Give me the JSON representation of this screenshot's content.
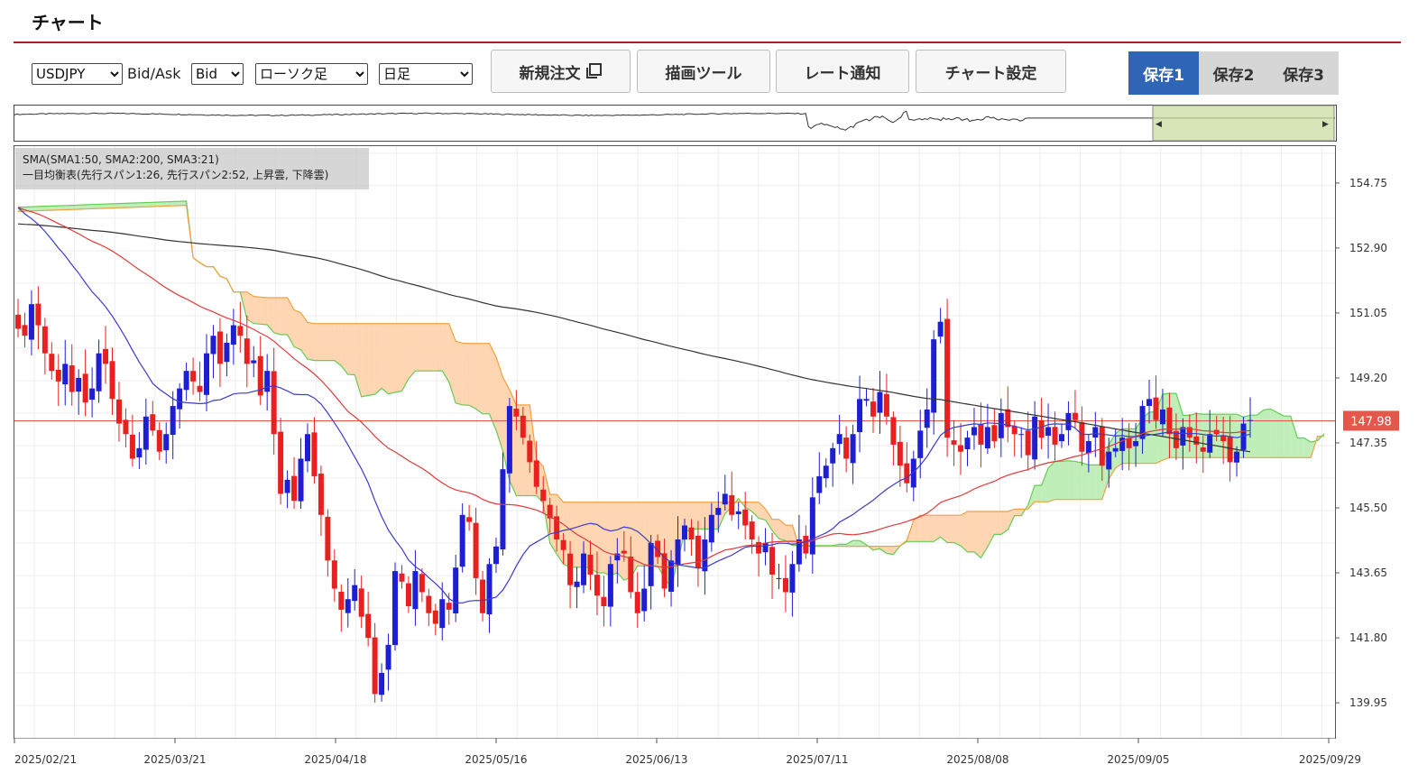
{
  "header": {
    "title": "チャート"
  },
  "toolbar": {
    "symbol": {
      "value": "USDJPY",
      "options": [
        "USDJPY"
      ]
    },
    "bidask_label": "Bid/Ask",
    "bidask": {
      "value": "Bid",
      "options": [
        "Bid"
      ]
    },
    "chart_type": {
      "value": "ローソク足",
      "options": [
        "ローソク足"
      ]
    },
    "timeframe": {
      "value": "日足",
      "options": [
        "日足"
      ]
    },
    "new_order_label": "新規注文",
    "drawing_tools_label": "描画ツール",
    "rate_alert_label": "レート通知",
    "chart_settings_label": "チャート設定",
    "saves": [
      "保存1",
      "保存2",
      "保存3"
    ],
    "active_save": 0
  },
  "legend": {
    "line1": "SMA(SMA1:50, SMA2:200, SMA3:21)",
    "line2": "一目均衡表(先行スパン1:26, 先行スパン2:52, 上昇雲, 下降雲)"
  },
  "chart_data": {
    "type": "candlestick",
    "y_axis_ticks": [
      "154.75",
      "152.90",
      "151.05",
      "149.20",
      "147.35",
      "145.50",
      "143.65",
      "141.80",
      "139.95"
    ],
    "y_axis_values": [
      154.75,
      152.9,
      151.05,
      149.2,
      147.35,
      145.5,
      143.65,
      141.8,
      139.95
    ],
    "ylim": [
      138.95,
      155.8
    ],
    "x_axis_ticks": [
      "2025/02/21",
      "2025/03/21",
      "2025/04/18",
      "2025/05/16",
      "2025/06/13",
      "2025/07/11",
      "2025/08/08",
      "2025/09/05",
      "2025/09/29"
    ],
    "current_price": "147.98",
    "current_price_value": 147.98,
    "colors": {
      "up": "#1e1ed2",
      "down": "#e82020",
      "sma50": "#e03a3a",
      "sma200": "#333333",
      "sma21": "#3a3ad0",
      "cloud_up": "#b8ecb0",
      "cloud_down": "#ffd2a8",
      "span1": "#66cc55",
      "span2": "#f0a040",
      "price_line": "#e3584a"
    },
    "closes": [
      150.6,
      150.4,
      151.3,
      150.7,
      149.9,
      149.4,
      149.1,
      149.6,
      148.8,
      149.2,
      148.5,
      148.9,
      149.9,
      149.6,
      148.6,
      147.9,
      147.6,
      146.9,
      147.2,
      148.1,
      147.7,
      147.1,
      147.6,
      148.4,
      148.9,
      149.4,
      149.1,
      148.8,
      149.9,
      150.4,
      149.6,
      150.2,
      150.7,
      150.4,
      149.6,
      149.7,
      148.7,
      149.4,
      147.6,
      145.9,
      146.3,
      145.7,
      146.9,
      147.6,
      146.4,
      145.3,
      144.0,
      143.2,
      142.6,
      142.9,
      143.3,
      142.4,
      141.8,
      140.2,
      140.8,
      141.6,
      143.7,
      143.4,
      142.7,
      143.7,
      143.1,
      142.5,
      142.2,
      142.9,
      142.6,
      143.8,
      145.3,
      145.1,
      143.5,
      142.5,
      143.9,
      144.4,
      146.6,
      148.4,
      148.1,
      147.5,
      146.8,
      146.1,
      145.7,
      145.2,
      144.6,
      144.3,
      143.3,
      143.4,
      144.2,
      143.6,
      143.0,
      142.7,
      143.9,
      144.2,
      144.2,
      143.1,
      142.5,
      143.2,
      144.5,
      144.1,
      143.2,
      144.0,
      144.6,
      145.0,
      144.6,
      143.8,
      144.6,
      145.3,
      145.5,
      145.9,
      145.3,
      145.4,
      145.0,
      144.6,
      144.2,
      144.5,
      143.6,
      143.5,
      143.1,
      143.9,
      144.6,
      144.2,
      145.8,
      146.4,
      146.7,
      147.2,
      147.6,
      146.9,
      147.6,
      148.6,
      148.6,
      148.1,
      148.8,
      148.1,
      147.3,
      146.7,
      146.2,
      146.9,
      147.7,
      148.3,
      150.3,
      150.8,
      147.5,
      147.3,
      147.1,
      147.5,
      147.8,
      147.3,
      147.8,
      147.4,
      148.2,
      147.8,
      147.6,
      147.6,
      147.0,
      148.1,
      147.5,
      147.8,
      147.3,
      147.6,
      148.2,
      148.0,
      147.1,
      147.4,
      147.8,
      146.7,
      147.1,
      147.2,
      147.5,
      147.2,
      147.4,
      148.4,
      148.6,
      148.0,
      148.3,
      147.6,
      147.2,
      147.8,
      147.5,
      147.3,
      147.1,
      147.6,
      147.6,
      147.4,
      146.8,
      147.1,
      147.9,
      148.0
    ]
  }
}
